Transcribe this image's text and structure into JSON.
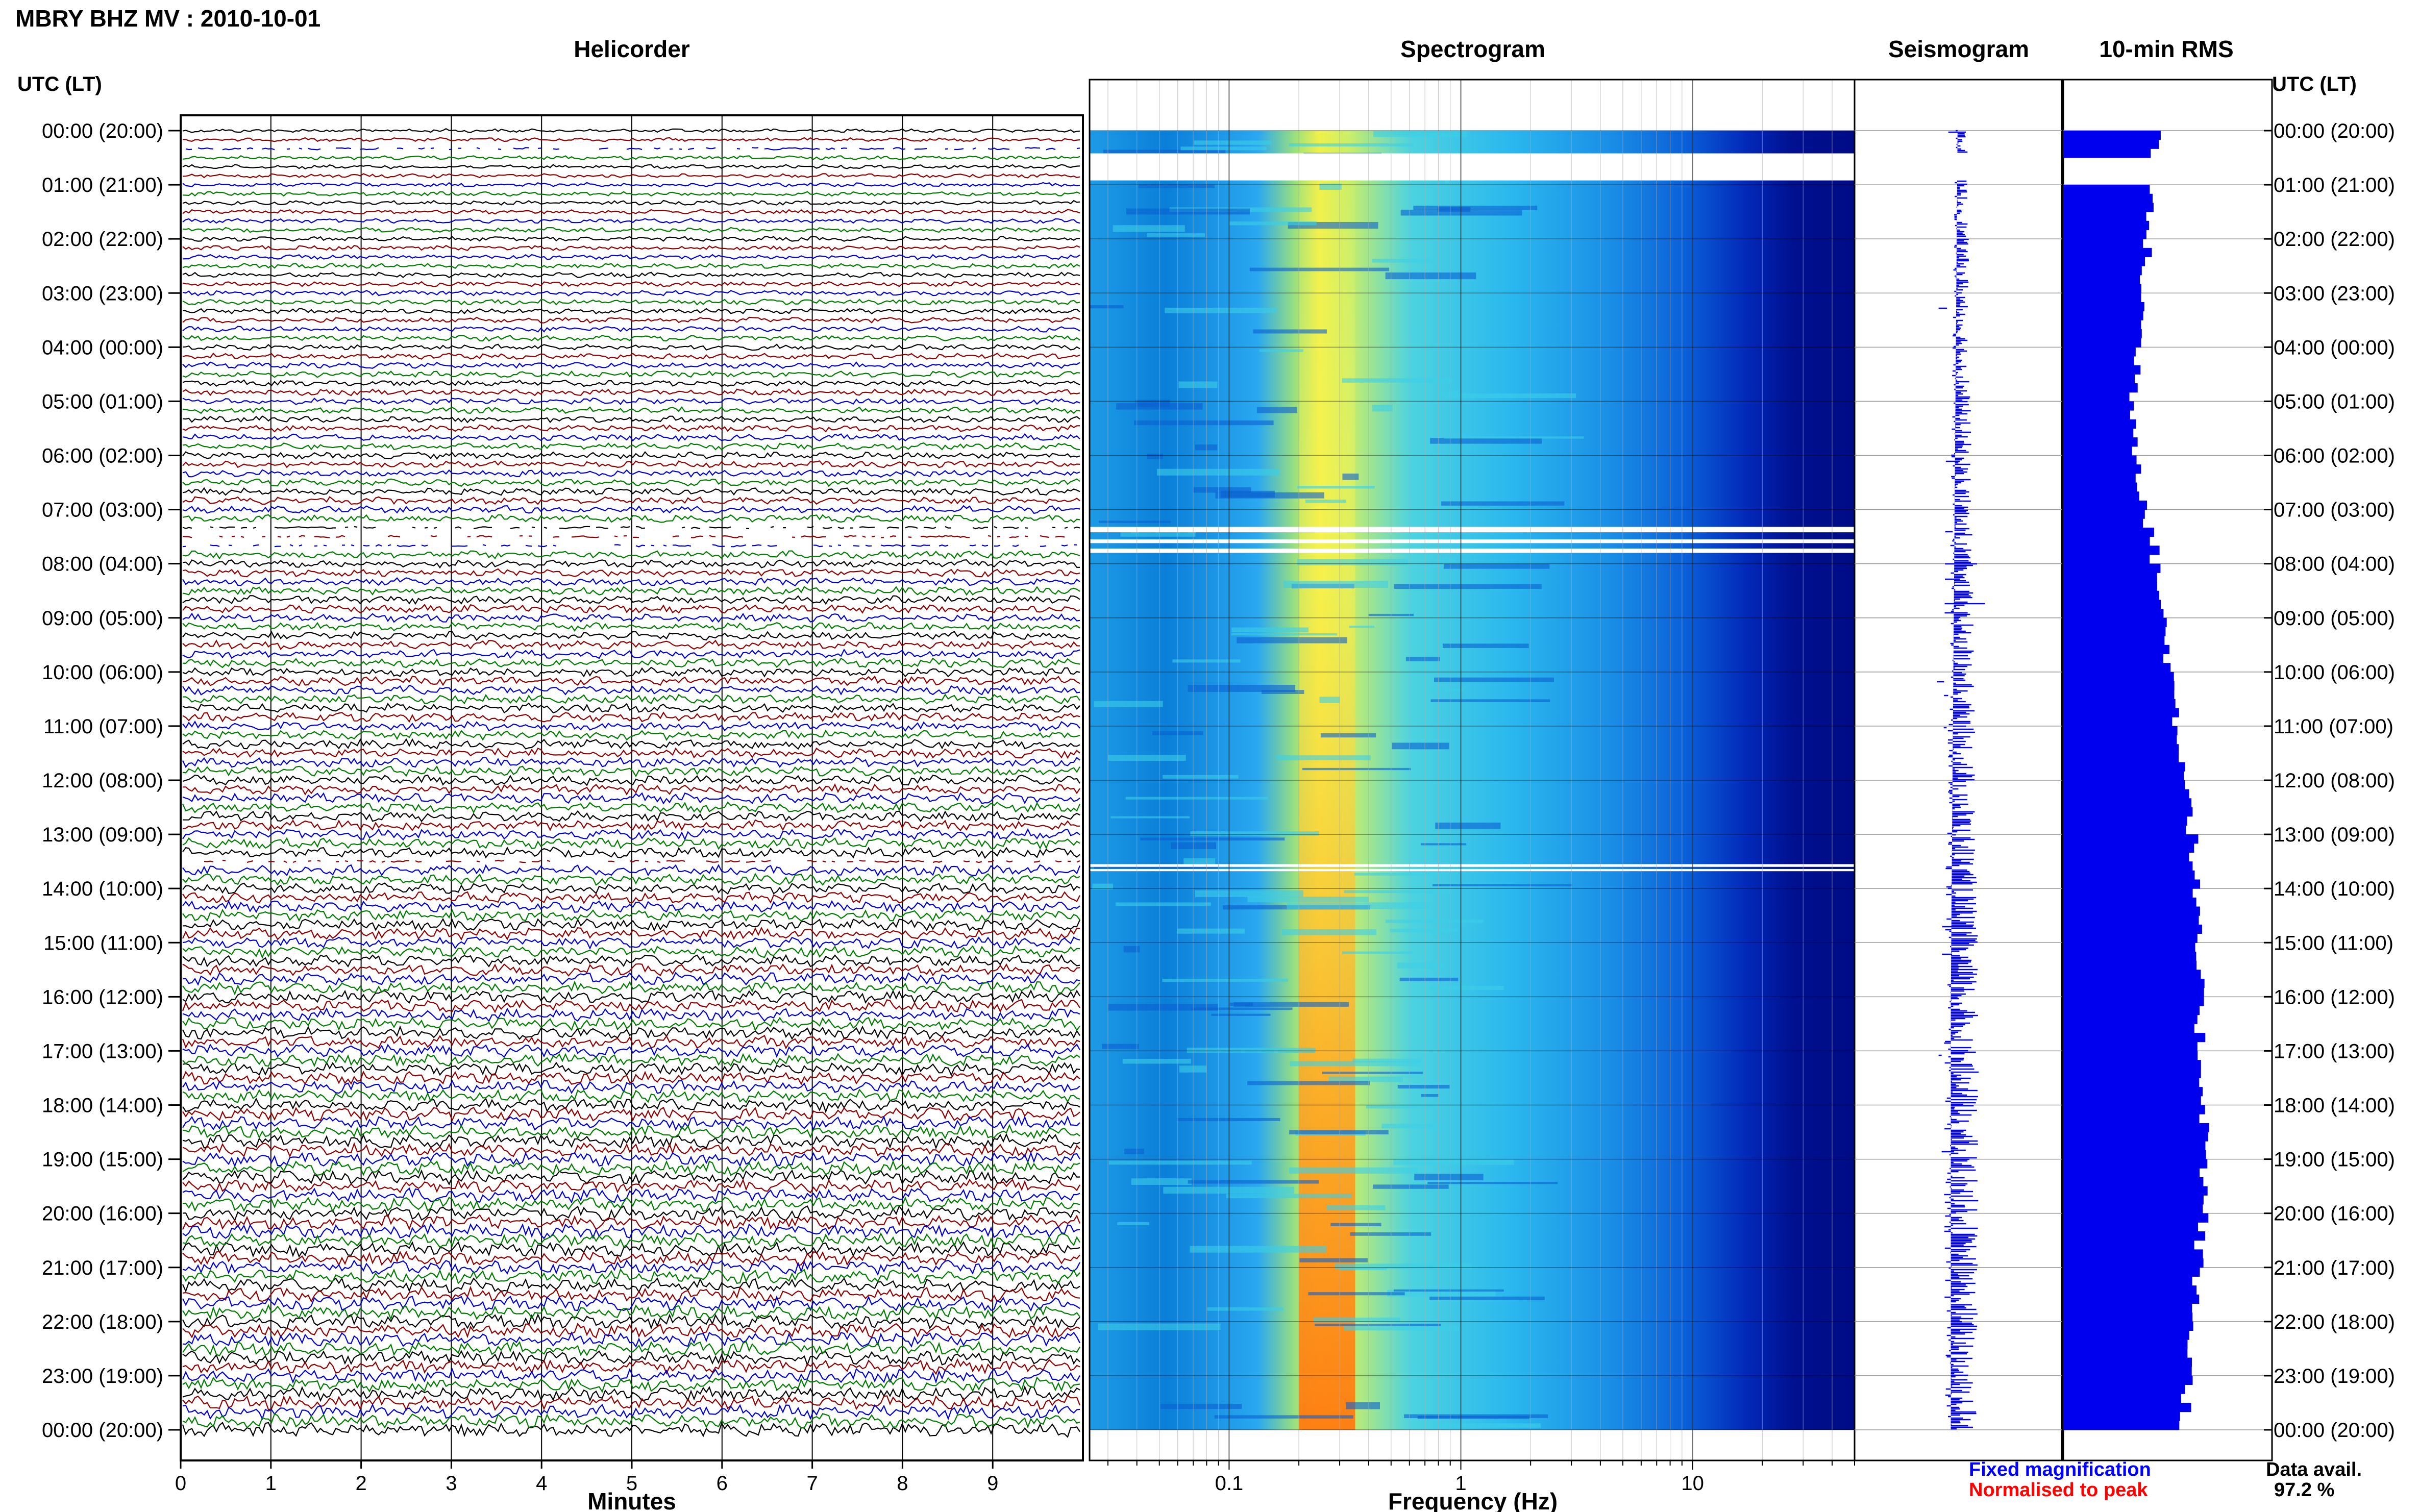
{
  "header": {
    "title": "MBRY BHZ MV : 2010-10-01",
    "tz_label": "UTC (LT)"
  },
  "panels": {
    "helicorder": "Helicorder",
    "spectrogram": "Spectrogram",
    "seismogram": "Seismogram",
    "rms": "10-min RMS"
  },
  "time_labels": [
    "00:00 (20:00)",
    "01:00 (21:00)",
    "02:00 (22:00)",
    "03:00 (23:00)",
    "04:00 (00:00)",
    "05:00 (01:00)",
    "06:00 (02:00)",
    "07:00 (03:00)",
    "08:00 (04:00)",
    "09:00 (05:00)",
    "10:00 (06:00)",
    "11:00 (07:00)",
    "12:00 (08:00)",
    "13:00 (09:00)",
    "14:00 (10:00)",
    "15:00 (11:00)",
    "16:00 (12:00)",
    "17:00 (13:00)",
    "18:00 (14:00)",
    "19:00 (15:00)",
    "20:00 (16:00)",
    "21:00 (17:00)",
    "22:00 (18:00)",
    "23:00 (19:00)",
    "00:00 (20:00)"
  ],
  "helicorder_axis": {
    "label": "Minutes",
    "ticks": [
      "0",
      "1",
      "2",
      "3",
      "4",
      "5",
      "6",
      "7",
      "8",
      "9"
    ]
  },
  "spectrogram_axis": {
    "label": "Frequency (Hz)",
    "ticks": [
      "0.1",
      "1",
      "10"
    ],
    "scale": "log",
    "xlim": [
      0.025,
      50
    ]
  },
  "legend": {
    "fixed": "Fixed magnification",
    "normalised": "Normalised to peak"
  },
  "data_availability": {
    "label": "Data avail.",
    "value": "97.2 %"
  },
  "colors": {
    "helicorder_traces": [
      "#000000",
      "#8b0000",
      "#0000cc",
      "#007a00"
    ],
    "fixed_magnification": "#0000ff",
    "normalised": "#ff0000",
    "rms_bar": "#0000ee",
    "spectrogram_colormap": [
      "#00008b",
      "#0000ff",
      "#00bfff",
      "#40e0d0",
      "#ffff00",
      "#ff8c00",
      "#ff0000"
    ]
  },
  "chart_data": [
    {
      "type": "line",
      "title": "Helicorder",
      "xlabel": "Minutes",
      "xlim": [
        0,
        10
      ],
      "rows_per_hour": 6,
      "hours": 24,
      "data_gaps_utc": [
        "00:15-00:25",
        "07:20-07:45",
        "13:30-13:35"
      ]
    },
    {
      "type": "heatmap",
      "title": "Spectrogram",
      "xlabel": "Frequency (Hz)",
      "xscale": "log",
      "xlim": [
        0.025,
        50
      ],
      "dominant_band_hz": [
        0.2,
        0.35
      ],
      "peak_hz": 0.25
    },
    {
      "type": "line",
      "title": "Seismogram",
      "note": "Fixed magnification, continuous 24 h trace"
    },
    {
      "type": "bar",
      "title": "10-min RMS",
      "orientation": "horizontal",
      "hours": [
        0,
        1,
        2,
        3,
        4,
        5,
        6,
        7,
        8,
        9,
        10,
        11,
        12,
        13,
        14,
        15,
        16,
        17,
        18,
        19,
        20,
        21,
        22,
        23,
        24
      ],
      "values": [
        45,
        42,
        40,
        38,
        36,
        34,
        36,
        40,
        45,
        48,
        52,
        55,
        60,
        62,
        63,
        64,
        65,
        66,
        68,
        68,
        67,
        64,
        62,
        60,
        58
      ],
      "xlim": [
        0,
        100
      ]
    }
  ]
}
